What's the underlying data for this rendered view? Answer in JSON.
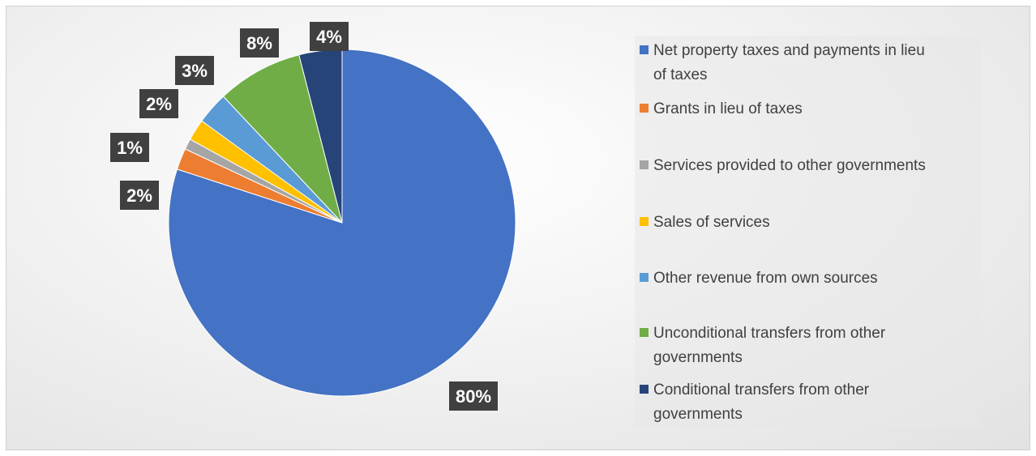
{
  "chart_data": {
    "type": "pie",
    "title": "",
    "legend_position": "right",
    "slices": [
      {
        "label": "Net property taxes and payments in lieu of taxes",
        "value": 80,
        "display": "80%",
        "color": "#4472C4"
      },
      {
        "label": "Grants in lieu of taxes",
        "value": 2,
        "display": "2%",
        "color": "#ED7D31"
      },
      {
        "label": "Services provided to other governments",
        "value": 1,
        "display": "1%",
        "color": "#A5A5A5"
      },
      {
        "label": "Sales of services",
        "value": 2,
        "display": "2%",
        "color": "#FFC000"
      },
      {
        "label": "Other revenue from own sources",
        "value": 3,
        "display": "3%",
        "color": "#5B9BD5"
      },
      {
        "label": "Unconditional transfers from other governments",
        "value": 8,
        "display": "8%",
        "color": "#70AD47"
      },
      {
        "label": "Conditional transfers from other governments",
        "value": 4,
        "display": "4%",
        "color": "#264478"
      }
    ]
  },
  "legend": {
    "items": [
      {
        "line1": "Net property taxes and payments in lieu",
        "line2": "of taxes"
      },
      {
        "line1": "Grants in lieu of taxes",
        "line2": ""
      },
      {
        "line1": "Services provided to other governments",
        "line2": ""
      },
      {
        "line1": "Sales of services",
        "line2": ""
      },
      {
        "line1": "Other revenue from own sources",
        "line2": ""
      },
      {
        "line1": "Unconditional transfers from other",
        "line2": "governments"
      },
      {
        "line1": "Conditional transfers from other",
        "line2": "governments"
      }
    ]
  }
}
